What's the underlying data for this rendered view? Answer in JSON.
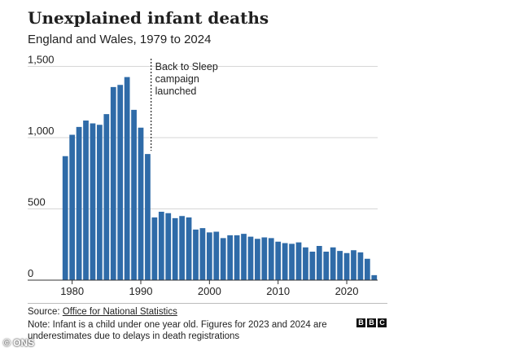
{
  "header": {
    "title": "Unexplained infant deaths",
    "subtitle": "England and Wales, 1979 to 2024"
  },
  "chart_data": {
    "type": "bar",
    "title": "Unexplained infant deaths",
    "subtitle": "England and Wales, 1979 to 2024",
    "xlabel": "",
    "ylabel": "",
    "ylim": [
      0,
      1600
    ],
    "yticks": [
      0,
      500,
      1000,
      1500
    ],
    "ytick_labels": [
      "0",
      "500",
      "1,000",
      "1,500"
    ],
    "xticks": [
      1980,
      1990,
      2000,
      2010,
      2020
    ],
    "xtick_labels": [
      "1980",
      "1990",
      "2000",
      "2010",
      "2020"
    ],
    "grid": "horizontal",
    "color": "#2f6ba8",
    "categories": [
      1979,
      1980,
      1981,
      1982,
      1983,
      1984,
      1985,
      1986,
      1987,
      1988,
      1989,
      1990,
      1991,
      1992,
      1993,
      1994,
      1995,
      1996,
      1997,
      1998,
      1999,
      2000,
      2001,
      2002,
      2003,
      2004,
      2005,
      2006,
      2007,
      2008,
      2009,
      2010,
      2011,
      2012,
      2013,
      2014,
      2015,
      2016,
      2017,
      2018,
      2019,
      2020,
      2021,
      2022,
      2023,
      2024
    ],
    "values": [
      870,
      1020,
      1075,
      1120,
      1100,
      1090,
      1165,
      1355,
      1370,
      1425,
      1195,
      1070,
      885,
      440,
      480,
      470,
      435,
      450,
      440,
      355,
      365,
      335,
      340,
      295,
      315,
      315,
      325,
      305,
      290,
      300,
      295,
      270,
      260,
      255,
      265,
      230,
      200,
      240,
      200,
      230,
      205,
      190,
      210,
      195,
      150,
      35
    ],
    "annotation": {
      "x": 1991,
      "lines": [
        "Back to Sleep",
        "campaign",
        "launched"
      ]
    }
  },
  "footer": {
    "source_prefix": "Source: ",
    "source_link": "Office for National Statistics",
    "note": "Note: Infant is a child under one year old. Figures for 2023 and 2024 are underestimates due to delays in death registrations",
    "logo_letters": [
      "B",
      "B",
      "C"
    ],
    "credit": "© ONS"
  }
}
